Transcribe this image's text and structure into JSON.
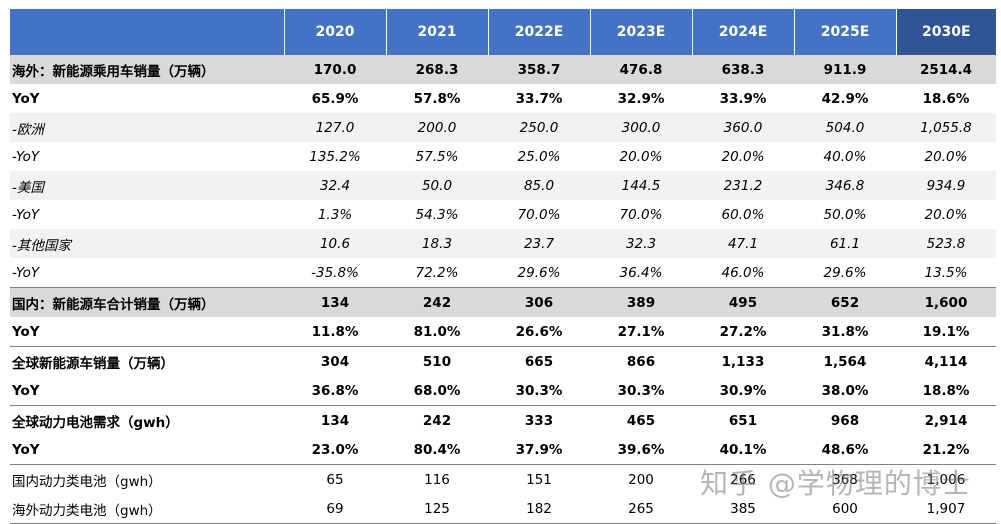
{
  "table": {
    "header": [
      "",
      "2020",
      "2021",
      "2022E",
      "2023E",
      "2024E",
      "2025E",
      "2030E"
    ],
    "rows": [
      {
        "label": "海外：新能源乘用车销量（万辆）",
        "values": [
          "170.0",
          "268.3",
          "358.7",
          "476.8",
          "638.3",
          "911.9",
          "2514.4"
        ]
      },
      {
        "label": "YoY",
        "values": [
          "65.9%",
          "57.8%",
          "33.7%",
          "32.9%",
          "33.9%",
          "42.9%",
          "18.6%"
        ]
      },
      {
        "label": "-欧洲",
        "values": [
          "127.0",
          "200.0",
          "250.0",
          "300.0",
          "360.0",
          "504.0",
          "1,055.8"
        ]
      },
      {
        "label": "-YoY",
        "values": [
          "135.2%",
          "57.5%",
          "25.0%",
          "20.0%",
          "20.0%",
          "40.0%",
          "20.0%"
        ]
      },
      {
        "label": "-美国",
        "values": [
          "32.4",
          "50.0",
          "85.0",
          "144.5",
          "231.2",
          "346.8",
          "934.9"
        ]
      },
      {
        "label": "-YoY",
        "values": [
          "1.3%",
          "54.3%",
          "70.0%",
          "70.0%",
          "60.0%",
          "50.0%",
          "20.0%"
        ]
      },
      {
        "label": "-其他国家",
        "values": [
          "10.6",
          "18.3",
          "23.7",
          "32.3",
          "47.1",
          "61.1",
          "523.8"
        ]
      },
      {
        "label": "-YoY",
        "values": [
          "-35.8%",
          "72.2%",
          "29.6%",
          "36.4%",
          "46.0%",
          "29.6%",
          "13.5%"
        ]
      },
      {
        "label": "国内：新能源车合计销量（万辆）",
        "values": [
          "134",
          "242",
          "306",
          "389",
          "495",
          "652",
          "1,600"
        ]
      },
      {
        "label": "YoY",
        "values": [
          "11.8%",
          "81.0%",
          "26.6%",
          "27.1%",
          "27.2%",
          "31.8%",
          "19.1%"
        ]
      },
      {
        "label": "全球新能源车销量（万辆）",
        "values": [
          "304",
          "510",
          "665",
          "866",
          "1,133",
          "1,564",
          "4,114"
        ]
      },
      {
        "label": "YoY",
        "values": [
          "36.8%",
          "68.0%",
          "30.3%",
          "30.3%",
          "30.9%",
          "38.0%",
          "18.8%"
        ]
      },
      {
        "label": "全球动力电池需求（gwh）",
        "values": [
          "134",
          "242",
          "333",
          "465",
          "651",
          "968",
          "2,914"
        ]
      },
      {
        "label": "YoY",
        "values": [
          "23.0%",
          "80.4%",
          "37.9%",
          "39.6%",
          "40.1%",
          "48.6%",
          "21.2%"
        ]
      },
      {
        "label": "国内动力类电池（gwh）",
        "values": [
          "65",
          "116",
          "151",
          "200",
          "266",
          "368",
          "1,006"
        ]
      },
      {
        "label": "海外动力类电池（gwh）",
        "values": [
          "69",
          "125",
          "182",
          "265",
          "385",
          "600",
          "1,907"
        ]
      }
    ]
  },
  "watermark": "知乎 @学物理的博士",
  "colors": {
    "header_bg": "#4472c4",
    "header_last_bg": "#2f5597",
    "band_dark": "#d9d9d9",
    "band_light": "#f2f2f2"
  }
}
